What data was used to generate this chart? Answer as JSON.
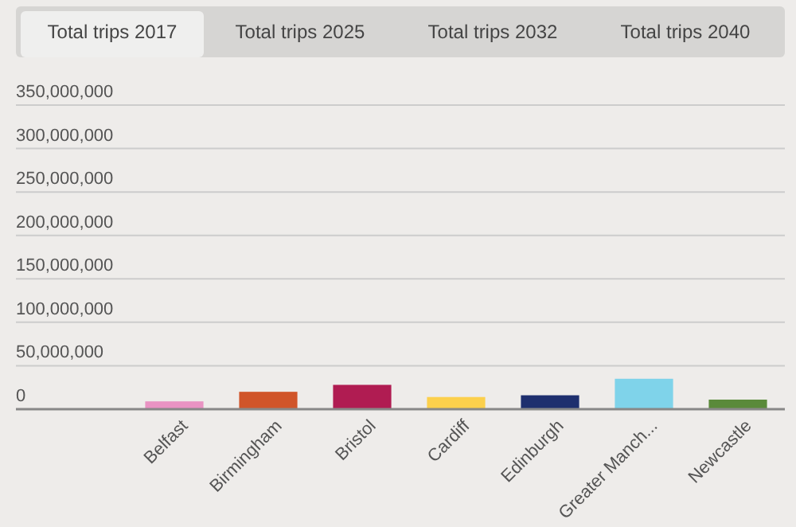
{
  "chart_data": {
    "type": "bar",
    "title": "Total trips 2017",
    "annotations": [
      "Total trips 2025",
      "Total trips 2032",
      "Total trips 2040"
    ],
    "categories": [
      "Belfast",
      "Birmingham",
      "Bristol",
      "Cardiff",
      "Edinburgh",
      "Greater Manch...",
      "Newcastle"
    ],
    "values": [
      9000000,
      20000000,
      28000000,
      14000000,
      16000000,
      35000000,
      11000000
    ],
    "colors": [
      "#e993c3",
      "#d0552a",
      "#b01c52",
      "#fcd04c",
      "#1e2f6e",
      "#7fd3ea",
      "#5a8a3a"
    ],
    "ylim": [
      0,
      350000000
    ],
    "yticks": [
      {
        "value": 0,
        "label": "0"
      },
      {
        "value": 50000000,
        "label": "50,000,000"
      },
      {
        "value": 100000000,
        "label": "100,000,000"
      },
      {
        "value": 150000000,
        "label": "150,000,000"
      },
      {
        "value": 200000000,
        "label": "200,000,000"
      },
      {
        "value": 250000000,
        "label": "250,000,000"
      },
      {
        "value": 300000000,
        "label": "300,000,000"
      },
      {
        "value": 350000000,
        "label": "350,000,000"
      }
    ],
    "grid": "y"
  }
}
